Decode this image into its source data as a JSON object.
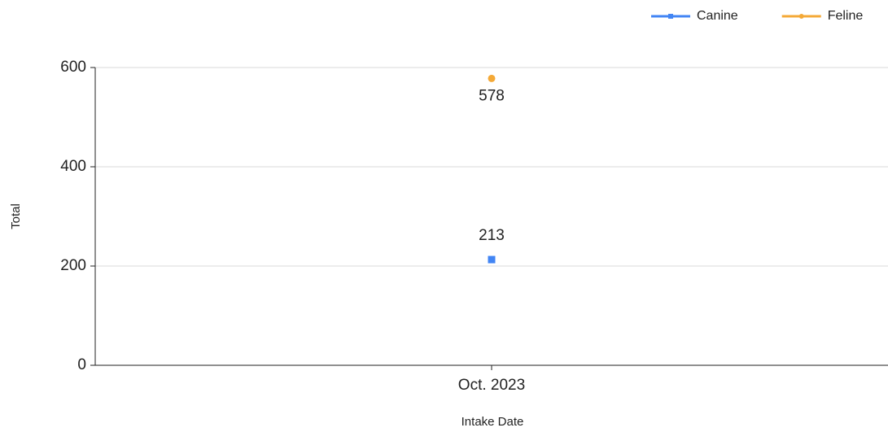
{
  "chart_data": {
    "type": "line",
    "x_label": "Intake Date",
    "y_label": "Total",
    "categories": [
      "Oct. 2023"
    ],
    "series": [
      {
        "name": "Canine",
        "color": "#4285f4",
        "marker": "square",
        "values": [
          213
        ]
      },
      {
        "name": "Feline",
        "color": "#f4a937",
        "marker": "circle",
        "values": [
          578
        ]
      }
    ],
    "ylim": [
      0,
      600
    ],
    "yticks": [
      0,
      200,
      400,
      600
    ],
    "grid": true,
    "legend": "top-right",
    "data_labels": true
  }
}
